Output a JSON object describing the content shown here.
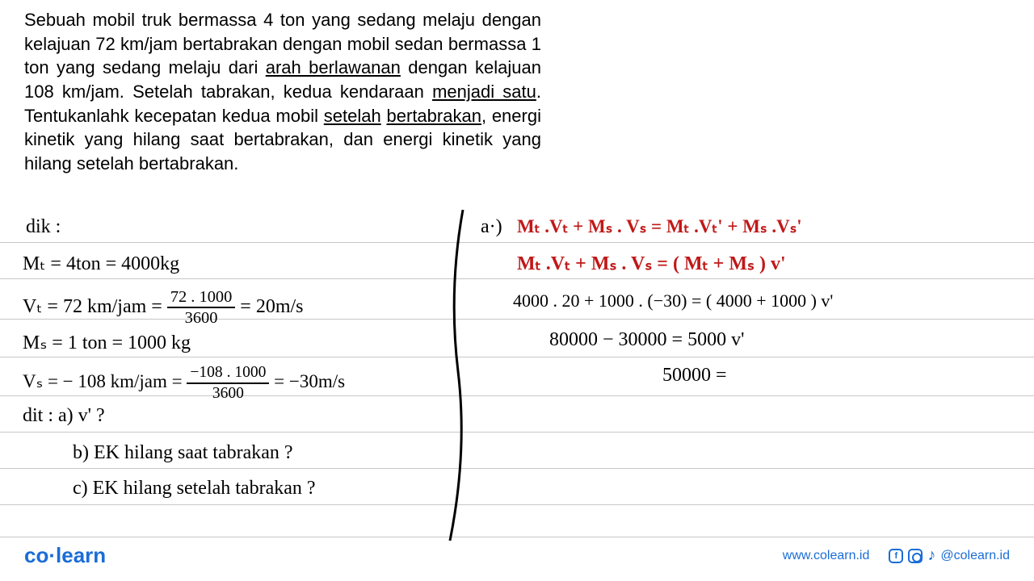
{
  "problem": {
    "lines": [
      "Sebuah mobil truk bermassa 4 ton yang sedang melaju dengan",
      "kelajuan 72 km/jam bertabrakan dengan mobil sedan bermassa",
      "1 ton yang sedang melaju dari ",
      " dengan",
      "kelajuan 108 km/jam. Setelah tabrakan, kedua kendaraan",
      ". Tentukanlahk kecepatan kedua mobil ",
      ", energi kinetik yang hilang saat bertabrakan, dan",
      "energi kinetik yang hilang setelah bertabrakan."
    ],
    "u_arah": "arah berlawanan",
    "u_menjadi": "menjadi satu",
    "u_setelah": "setelah",
    "u_bertabrakan": "bertabrakan"
  },
  "rules": {
    "color": "#c7c7c7",
    "positions": [
      300,
      345,
      395,
      442,
      490,
      535,
      580,
      625,
      665
    ]
  },
  "handwriting": {
    "fontsize": 24,
    "fontsize_sm": 20,
    "dik": "dik :",
    "mt": "Mₜ = 4ton = 4000kg",
    "vt_a": "Vₜ = 72 km/jam =",
    "vt_num": "72 . 1000",
    "vt_den": "3600",
    "vt_b": "= 20m/s",
    "ms": "Mₛ = 1 ton = 1000 kg",
    "vs_a": "Vₛ = − 108 km/jam =",
    "vs_num": "−108 . 1000",
    "vs_den": "3600",
    "vs_b": "= −30m/s",
    "dit": "dit :  a)  v'   ?",
    "b": "b)  EK hilang  saat  tabrakan ?",
    "c": "c)  EK hilang  setelah  tabrakan ?",
    "a_label": "a·)",
    "eq1": "Mₜ .Vₜ  + Mₛ . Vₛ   =  Mₜ .Vₜ'   +  Mₛ .Vₛ'",
    "eq2": "Mₜ .Vₜ  + Mₛ . Vₛ  =  ( Mₜ  +  Mₛ ) v'",
    "eq3": "4000 . 20 + 1000 . (−30) = ( 4000 + 1000 )  v'",
    "eq4": "80000  −  30000    =   5000  v'",
    "eq5": "50000   ="
  },
  "colors": {
    "black": "#000000",
    "red": "#c01818",
    "rule": "#c7c7c7",
    "brand": "#1a6dd6",
    "bg": "#ffffff"
  },
  "footer": {
    "logo_co": "co",
    "logo_learn": "learn",
    "url": "www.colearn.id",
    "handle": "@colearn.id"
  }
}
